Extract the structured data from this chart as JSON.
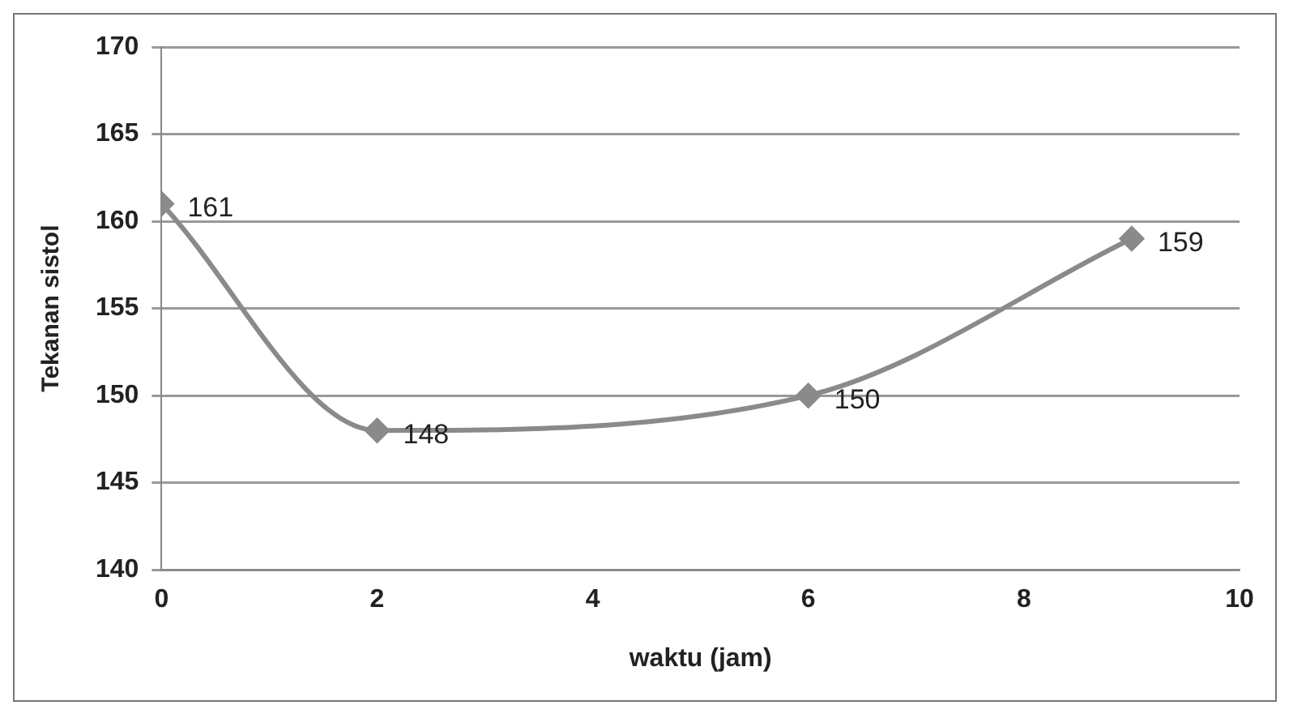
{
  "chart_data": {
    "type": "line",
    "xlabel": "waktu (jam)",
    "ylabel": "Tekanan sistol",
    "x": [
      0,
      2,
      6,
      9
    ],
    "series": [
      {
        "color": "#8a8a8a",
        "values": [
          161,
          148,
          150,
          159
        ]
      }
    ],
    "xlim": [
      0,
      10
    ],
    "xticks": [
      0,
      2,
      4,
      6,
      8,
      10
    ],
    "ylim": [
      140,
      170
    ],
    "yticks": [
      140,
      145,
      150,
      155,
      160,
      165,
      170
    ],
    "grid": "y",
    "legend": false,
    "marker": "diamond",
    "line_style": "solid",
    "data_labels": true
  }
}
